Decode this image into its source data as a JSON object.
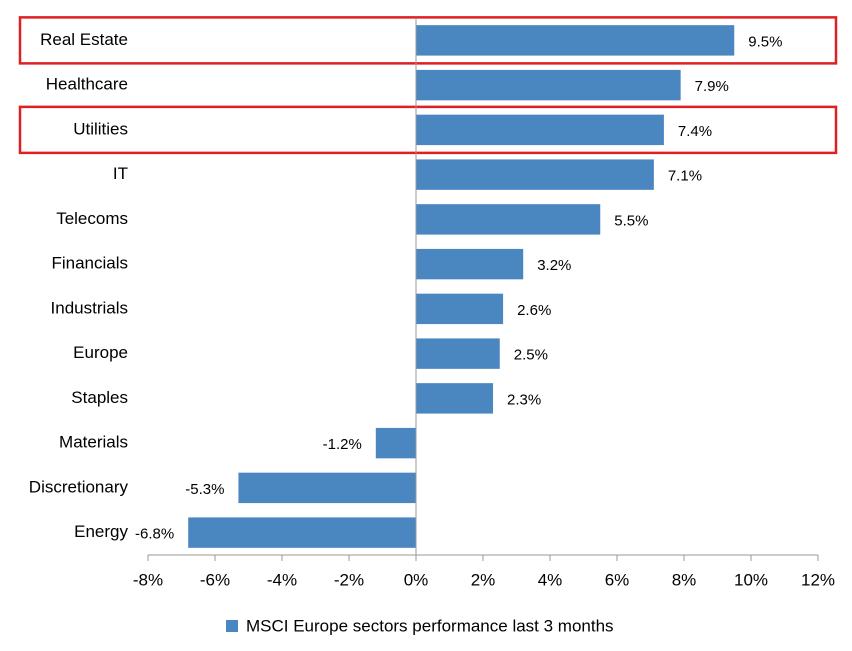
{
  "chart_data": {
    "type": "bar",
    "orientation": "horizontal",
    "categories": [
      "Real Estate",
      "Healthcare",
      "Utilities",
      "IT",
      "Telecoms",
      "Financials",
      "Industrials",
      "Europe",
      "Staples",
      "Materials",
      "Discretionary",
      "Energy"
    ],
    "series": [
      {
        "name": "MSCI Europe sectors performance last 3 months",
        "color": "#4a86c0",
        "values": [
          9.5,
          7.9,
          7.4,
          7.1,
          5.5,
          3.2,
          2.6,
          2.5,
          2.3,
          -1.2,
          -5.3,
          -6.8
        ],
        "value_labels": [
          "9.5%",
          "7.9%",
          "7.4%",
          "7.1%",
          "5.5%",
          "3.2%",
          "2.6%",
          "2.5%",
          "2.3%",
          "-1.2%",
          "-5.3%",
          "-6.8%"
        ]
      }
    ],
    "xlim": [
      -8,
      12
    ],
    "xticks": [
      {
        "value": -8,
        "label": "-8%"
      },
      {
        "value": -6,
        "label": "-6%"
      },
      {
        "value": -4,
        "label": "-4%"
      },
      {
        "value": -2,
        "label": "-2%"
      },
      {
        "value": 0,
        "label": "0%"
      },
      {
        "value": 2,
        "label": "2%"
      },
      {
        "value": 4,
        "label": "4%"
      },
      {
        "value": 6,
        "label": "6%"
      },
      {
        "value": 8,
        "label": "8%"
      },
      {
        "value": 10,
        "label": "10%"
      },
      {
        "value": 12,
        "label": "12%"
      }
    ],
    "highlight": [
      0,
      2
    ],
    "highlight_color": "#e02020",
    "legend": "bottom"
  }
}
